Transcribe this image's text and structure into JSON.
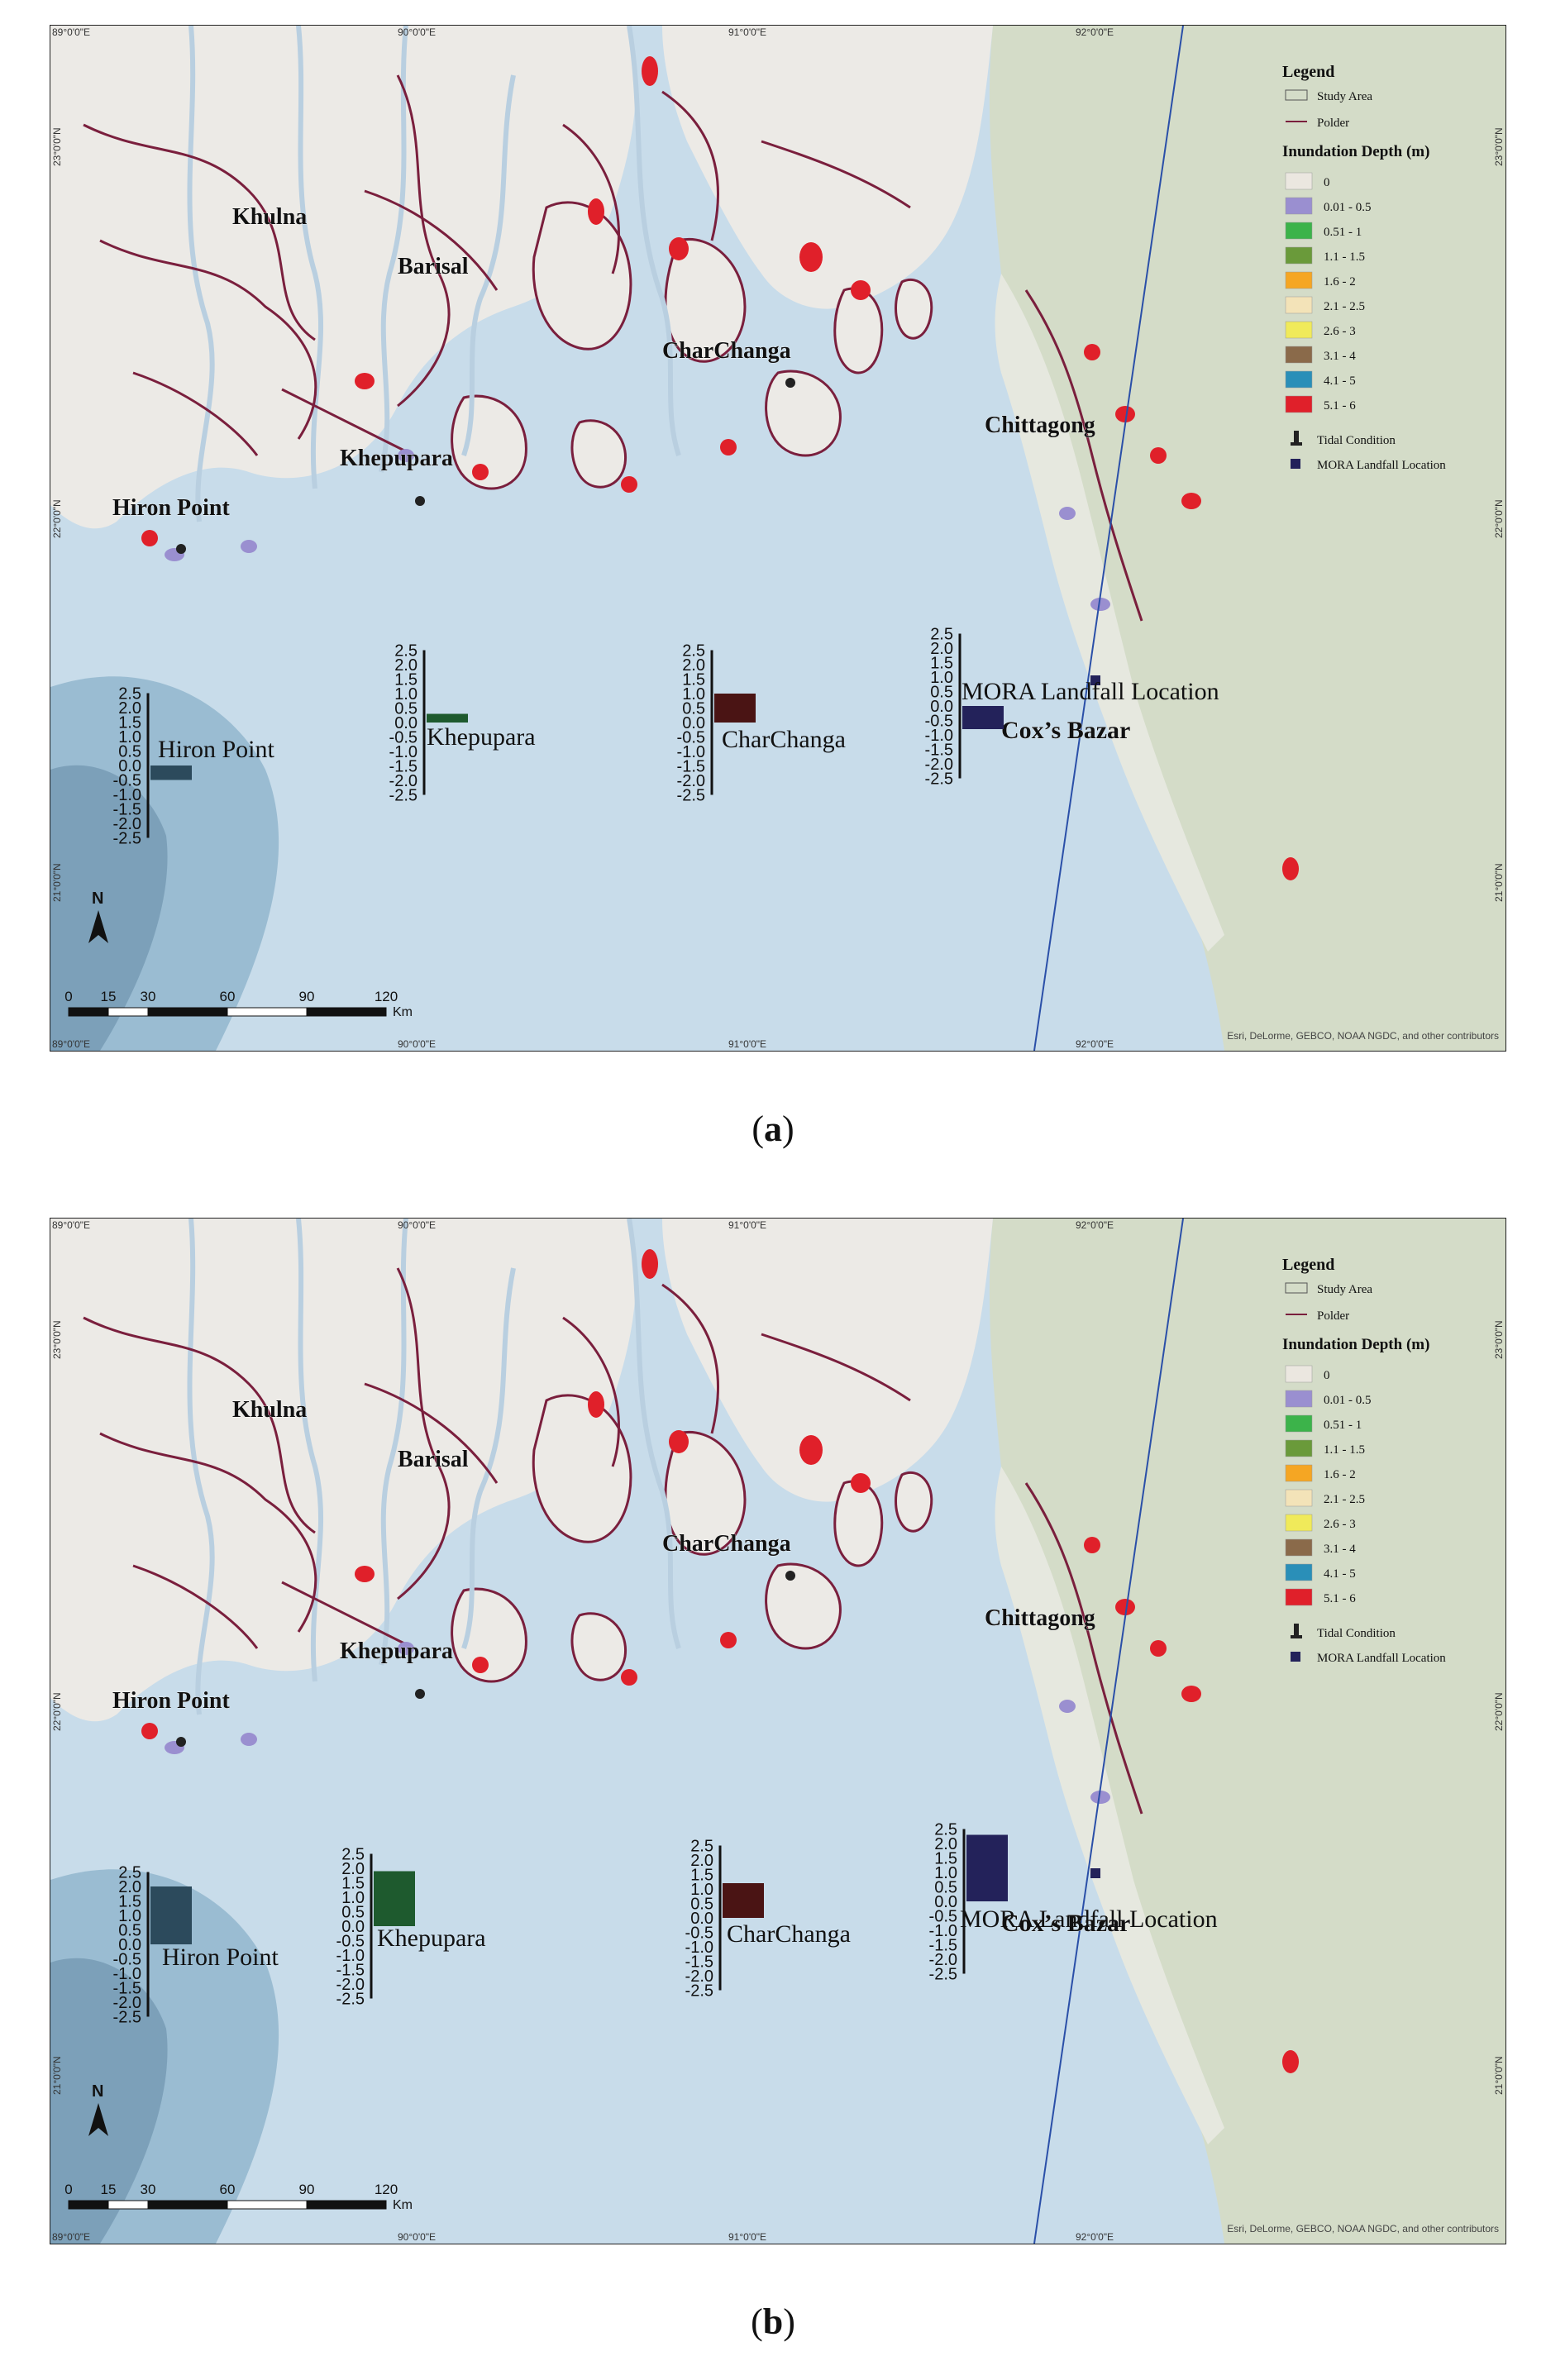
{
  "colors": {
    "sea": "#c8dcea",
    "deep_sea": "#8fb4cc",
    "land": "#eceae6",
    "hills": "#d4dcc8",
    "polder": "#7a1f3d",
    "study_area": "#555555",
    "river": "#b9cfe0",
    "track": "#2a4fa8",
    "depth_colors": [
      "#ebe7e0",
      "#9a8fd0",
      "#3cb34a",
      "#6a9a3a",
      "#f5a623",
      "#f3e3b8",
      "#f0ea5a",
      "#8a6a4a",
      "#2a8fb8",
      "#e0202a"
    ]
  },
  "panels": [
    {
      "label": "a",
      "legend": {
        "title": "Legend",
        "study_area": "Study Area",
        "polder": "Polder",
        "depth_title": "Inundation Depth (m)",
        "depth_classes": [
          "0",
          "0.01 - 0.5",
          "0.51 - 1",
          "1.1 - 1.5",
          "1.6 - 2",
          "2.1 - 2.5",
          "2.6 - 3",
          "3.1 - 4",
          "4.1 - 5",
          "5.1 - 6"
        ],
        "tidal": "Tidal Condition",
        "landfall": "MORA Landfall Location"
      },
      "places": [
        "Khulna",
        "Barisal",
        "CharChanga",
        "Chittagong",
        "Khepupara",
        "Hiron Point",
        "Cox’s Bazar"
      ],
      "top_coords": [
        "89°0'0\"E",
        "90°0'0\"E",
        "91°0'0\"E",
        "92°0'0\"E"
      ],
      "bottom_coords": [
        "89°0'0\"E",
        "90°0'0\"E",
        "91°0'0\"E",
        "92°0'0\"E"
      ],
      "left_coords": [
        "23°0'0\"N",
        "22°0'0\"N",
        "21°0'0\"N"
      ],
      "right_coords": [
        "23°0'0\"N",
        "22°0'0\"N",
        "21°0'0\"N"
      ],
      "scale_ticks": [
        "0",
        "15",
        "30",
        "60",
        "90",
        "120"
      ],
      "scale_unit": "Km",
      "north": "N",
      "attribution": "Esri, DeLorme, GEBCO, NOAA NGDC, and other contributors",
      "chart_data": {
        "type": "bar",
        "ylim": [
          -2.5,
          2.5
        ],
        "tick_labels": [
          "2.5",
          "2.0",
          "1.5",
          "1.0",
          "0.5",
          "0.0",
          "-0.5",
          "-1.0",
          "-1.5",
          "-2.0",
          "-2.5"
        ],
        "stations": [
          {
            "name": "Hiron Point",
            "value": -0.5,
            "color": "#2c4a5c"
          },
          {
            "name": "Khepupara",
            "value": 0.3,
            "color": "#1e5a2e"
          },
          {
            "name": "CharChanga",
            "value": 1.0,
            "color": "#4a1414"
          },
          {
            "name": "MORA Landfall Location",
            "value": -0.8,
            "color": "#23225a"
          }
        ]
      }
    },
    {
      "label": "b",
      "legend": {
        "title": "Legend",
        "study_area": "Study Area",
        "polder": "Polder",
        "depth_title": "Inundation Depth (m)",
        "depth_classes": [
          "0",
          "0.01 - 0.5",
          "0.51 - 1",
          "1.1 - 1.5",
          "1.6 - 2",
          "2.1 - 2.5",
          "2.6 - 3",
          "3.1 - 4",
          "4.1 - 5",
          "5.1 - 6"
        ],
        "tidal": "Tidal Condition",
        "landfall": "MORA Landfall Location"
      },
      "places": [
        "Khulna",
        "Barisal",
        "CharChanga",
        "Chittagong",
        "Khepupara",
        "Hiron Point",
        "Cox’s Bazar"
      ],
      "top_coords": [
        "89°0'0\"E",
        "90°0'0\"E",
        "91°0'0\"E",
        "92°0'0\"E"
      ],
      "bottom_coords": [
        "89°0'0\"E",
        "90°0'0\"E",
        "91°0'0\"E",
        "92°0'0\"E"
      ],
      "left_coords": [
        "23°0'0\"N",
        "22°0'0\"N",
        "21°0'0\"N"
      ],
      "right_coords": [
        "23°0'0\"N",
        "22°0'0\"N",
        "21°0'0\"N"
      ],
      "scale_ticks": [
        "0",
        "15",
        "30",
        "60",
        "90",
        "120"
      ],
      "scale_unit": "Km",
      "north": "N",
      "attribution": "Esri, DeLorme, GEBCO, NOAA NGDC, and other contributors",
      "chart_data": {
        "type": "bar",
        "ylim": [
          -2.5,
          2.5
        ],
        "tick_labels": [
          "2.5",
          "2.0",
          "1.5",
          "1.0",
          "0.5",
          "0.0",
          "-0.5",
          "-1.0",
          "-1.5",
          "-2.0",
          "-2.5"
        ],
        "stations": [
          {
            "name": "Hiron Point",
            "value": 2.0,
            "color": "#2c4a5c"
          },
          {
            "name": "Khepupara",
            "value": 1.9,
            "color": "#1e5a2e"
          },
          {
            "name": "CharChanga",
            "value": 1.2,
            "color": "#4a1414"
          },
          {
            "name": "MORA Landfall Location",
            "value": 2.3,
            "color": "#23225a"
          }
        ]
      }
    }
  ]
}
